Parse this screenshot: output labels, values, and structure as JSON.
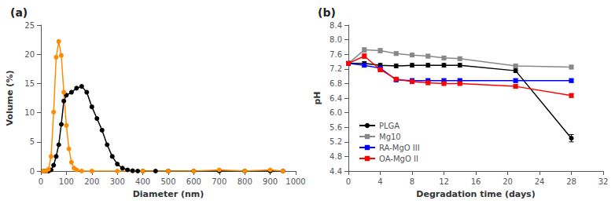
{
  "chart_data": [
    {
      "type": "line",
      "title": "(a)",
      "xlabel": "Diameter (nm)",
      "ylabel": "Volume (%)",
      "series": [
        {
          "color": "black",
          "marker": "circle",
          "x": [
            10,
            20,
            30,
            40,
            50,
            60,
            70,
            80,
            90,
            100,
            120,
            140,
            160,
            180,
            200,
            220,
            240,
            260,
            280,
            300,
            320,
            340,
            360,
            380,
            400,
            450,
            500,
            600,
            700,
            800,
            900,
            950
          ],
          "values": [
            0,
            0,
            0,
            0.2,
            1.0,
            2.5,
            4.5,
            8.0,
            12.0,
            13.0,
            13.5,
            14.2,
            14.5,
            13.5,
            11.0,
            9.0,
            7.0,
            4.5,
            2.5,
            1.2,
            0.5,
            0.2,
            0.05,
            0.0,
            0.0,
            0.0,
            0.0,
            0.0,
            0.0,
            0.0,
            0.0,
            0.0
          ]
        },
        {
          "color": "#FF8C00",
          "marker": "circle",
          "x": [
            10,
            20,
            30,
            40,
            50,
            60,
            70,
            80,
            90,
            100,
            110,
            120,
            130,
            140,
            160,
            200,
            300,
            400,
            500,
            600,
            700,
            800,
            900,
            950
          ],
          "values": [
            0,
            0,
            0.3,
            2.5,
            10.1,
            19.5,
            22.2,
            19.8,
            13.5,
            7.8,
            3.8,
            1.5,
            0.5,
            0.2,
            0.0,
            0.0,
            0.0,
            0.0,
            0.0,
            0.0,
            0.2,
            0.0,
            0.2,
            0.0
          ]
        }
      ],
      "xlim": [
        0,
        1000
      ],
      "ylim": [
        0,
        25
      ],
      "xticks": [
        0,
        100,
        200,
        300,
        400,
        500,
        600,
        700,
        800,
        900,
        1000
      ],
      "yticks": [
        0,
        5,
        10,
        15,
        20,
        25
      ],
      "grid": false
    },
    {
      "type": "line",
      "title": "(b)",
      "xlabel": "Degradation time (days)",
      "ylabel": "pH",
      "x": [
        0,
        2,
        4,
        6,
        8,
        10,
        12,
        14,
        21,
        28
      ],
      "series": [
        {
          "name": "PLGA",
          "color": "black",
          "marker": "circle",
          "values": [
            7.35,
            7.35,
            7.3,
            7.28,
            7.3,
            7.3,
            7.3,
            7.3,
            7.15,
            5.3
          ],
          "errors": [
            0.05,
            0.05,
            0.05,
            0.05,
            0.05,
            0.05,
            0.05,
            0.05,
            0.05,
            0.1
          ]
        },
        {
          "name": "Mg10",
          "color": "#888888",
          "marker": "square",
          "values": [
            7.35,
            7.72,
            7.7,
            7.62,
            7.58,
            7.55,
            7.5,
            7.48,
            7.28,
            7.25
          ],
          "errors": [
            0.06,
            0.06,
            0.06,
            0.05,
            0.05,
            0.05,
            0.05,
            0.05,
            0.05,
            0.05
          ]
        },
        {
          "name": "RA-MgO III",
          "color": "blue",
          "marker": "square",
          "values": [
            7.35,
            7.3,
            7.22,
            6.9,
            6.88,
            6.88,
            6.88,
            6.88,
            6.88,
            6.88
          ],
          "errors": [
            0.05,
            0.05,
            0.05,
            0.05,
            0.05,
            0.05,
            0.05,
            0.05,
            0.05,
            0.05
          ]
        },
        {
          "name": "OA-MgO II",
          "color": "red",
          "marker": "square",
          "values": [
            7.35,
            7.55,
            7.18,
            6.92,
            6.85,
            6.82,
            6.8,
            6.8,
            6.72,
            6.47
          ],
          "errors": [
            0.05,
            0.06,
            0.06,
            0.05,
            0.05,
            0.05,
            0.05,
            0.05,
            0.05,
            0.05
          ]
        }
      ],
      "xlim": [
        0,
        32
      ],
      "ylim": [
        4.4,
        8.4
      ],
      "xticks": [
        0,
        4,
        8,
        12,
        16,
        20,
        24,
        28,
        32
      ],
      "yticks": [
        4.4,
        4.8,
        5.2,
        5.6,
        {
          "value": 6.0,
          "label": "6.0"
        },
        6.4,
        6.8,
        7.2,
        7.6,
        {
          "value": 8.0,
          "label": "8.0"
        },
        8.4
      ],
      "legend": "lower left",
      "grid": false
    }
  ]
}
